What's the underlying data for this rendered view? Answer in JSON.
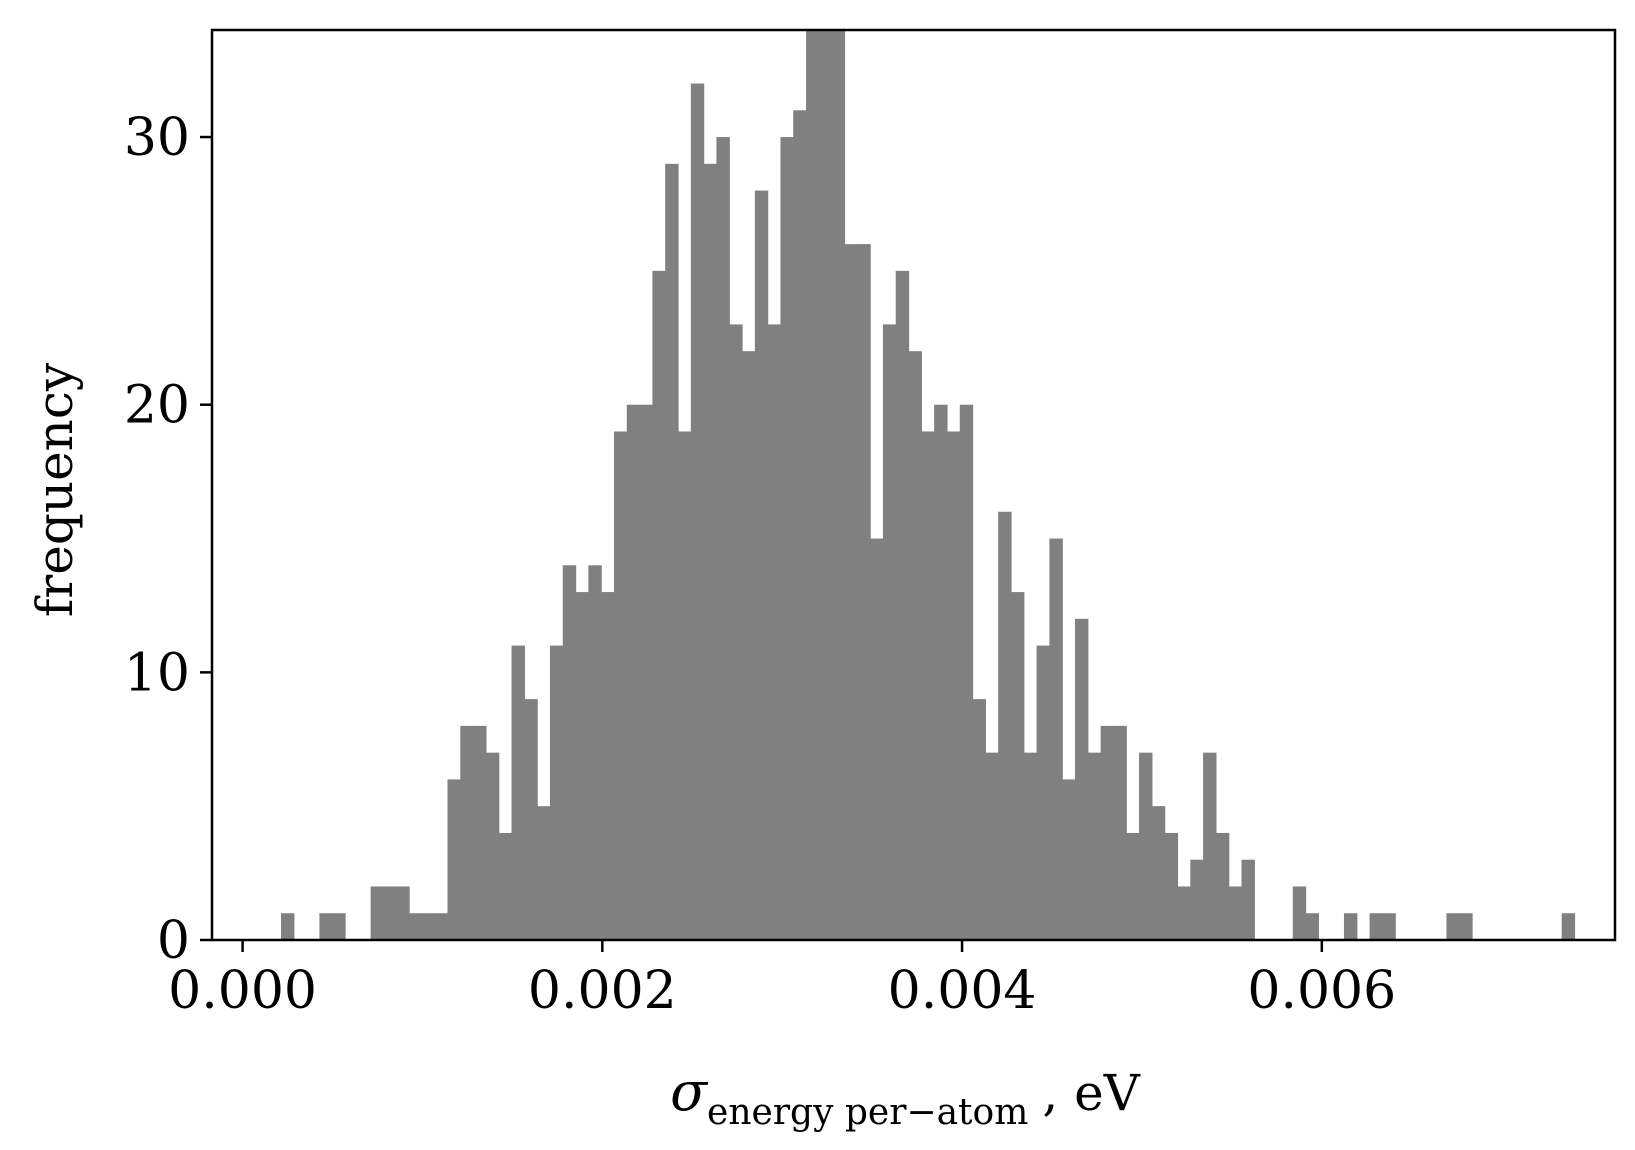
{
  "chart_data": {
    "type": "histogram",
    "xlabel_symbol": "σ",
    "xlabel_subscript": "energy per−atom",
    "xlabel_suffix": ", eV",
    "ylabel": "frequency",
    "xlim": [
      -0.00017,
      0.00763
    ],
    "ylim": [
      0,
      34
    ],
    "x_ticks": [
      {
        "value": 0.0,
        "label": "0.000"
      },
      {
        "value": 0.002,
        "label": "0.002"
      },
      {
        "value": 0.004,
        "label": "0.004"
      },
      {
        "value": 0.006,
        "label": "0.006"
      }
    ],
    "y_ticks": [
      {
        "value": 0,
        "label": "0"
      },
      {
        "value": 10,
        "label": "10"
      },
      {
        "value": 20,
        "label": "20"
      },
      {
        "value": 30,
        "label": "30"
      }
    ],
    "grid": false,
    "bar_color": "#808080",
    "bin_start": 0.0,
    "bin_width": 7.12e-05,
    "bin_counts": [
      0,
      0,
      0,
      1,
      0,
      0,
      1,
      1,
      0,
      0,
      2,
      2,
      2,
      1,
      1,
      1,
      6,
      8,
      8,
      7,
      4,
      11,
      9,
      5,
      11,
      14,
      13,
      14,
      13,
      19,
      20,
      20,
      25,
      29,
      19,
      32,
      29,
      30,
      23,
      22,
      28,
      23,
      30,
      31,
      34,
      34,
      34,
      26,
      26,
      15,
      23,
      25,
      22,
      19,
      20,
      19,
      20,
      9,
      7,
      16,
      13,
      7,
      11,
      15,
      6,
      12,
      7,
      8,
      8,
      4,
      7,
      5,
      4,
      2,
      3,
      7,
      4,
      2,
      3,
      0,
      0,
      0,
      2,
      1,
      0,
      0,
      1,
      0,
      1,
      1,
      0,
      0,
      0,
      0,
      1,
      1,
      0,
      0,
      0,
      0,
      0,
      0,
      0,
      1
    ]
  }
}
